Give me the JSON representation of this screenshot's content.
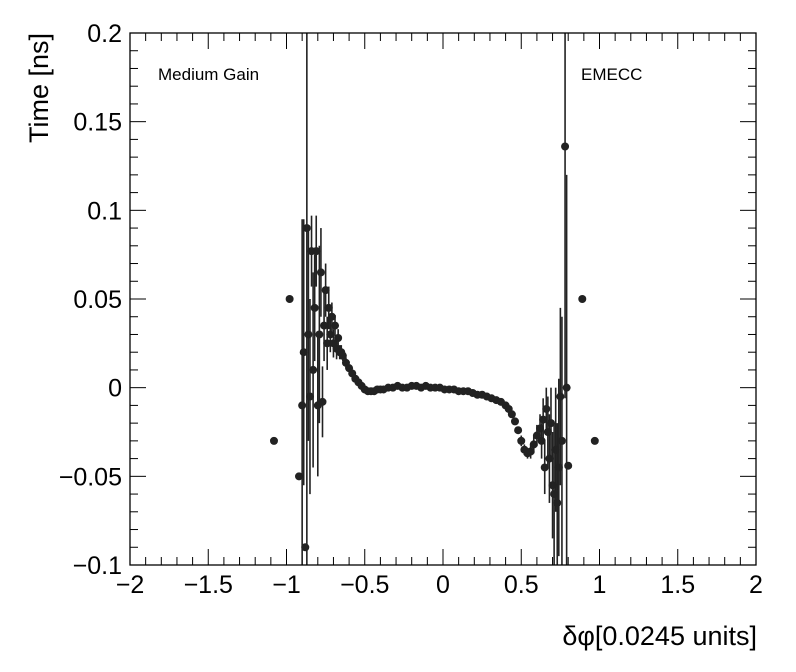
{
  "chart_data": {
    "type": "scatter",
    "title": "",
    "xlabel": "δφ[0.0245 units]",
    "ylabel": "Time [ns]",
    "xlim": [
      -2,
      2
    ],
    "ylim": [
      -0.1,
      0.2
    ],
    "x_ticks": [
      -2,
      -1.5,
      -1,
      -0.5,
      0,
      0.5,
      1,
      1.5,
      2
    ],
    "x_tick_labels": [
      "−2",
      "−1.5",
      "−1",
      "−0.5",
      "0",
      "0.5",
      "1",
      "1.5",
      "2"
    ],
    "y_ticks": [
      -0.1,
      -0.05,
      0,
      0.05,
      0.1,
      0.15,
      0.2
    ],
    "y_tick_labels": [
      "−0.1",
      "−0.05",
      "0",
      "0.05",
      "0.1",
      "0.15",
      "0.2"
    ],
    "grid": false,
    "marker_color": "#222222",
    "annotations": [
      "Medium Gain",
      "EMECC"
    ],
    "series": [
      {
        "points": [
          {
            "x": -1.08,
            "y": -0.03,
            "err": 0
          },
          {
            "x": -0.98,
            "y": 0.05,
            "err": 0
          },
          {
            "x": -0.92,
            "y": -0.05,
            "err": 0
          },
          {
            "x": -0.88,
            "y": -0.09,
            "err": 0
          },
          {
            "x": -0.9,
            "y": -0.01,
            "err": 0.105
          },
          {
            "x": -0.89,
            "y": 0.02,
            "err": 0.075
          },
          {
            "x": -0.87,
            "y": 0.09,
            "err": 0.2
          },
          {
            "x": -0.86,
            "y": 0.03,
            "err": 0.06
          },
          {
            "x": -0.85,
            "y": -0.005,
            "err": 0.055
          },
          {
            "x": -0.84,
            "y": 0.077,
            "err": 0.02
          },
          {
            "x": -0.83,
            "y": 0.01,
            "err": 0.055
          },
          {
            "x": -0.82,
            "y": 0.045,
            "err": 0.03
          },
          {
            "x": -0.81,
            "y": 0.077,
            "err": 0.02
          },
          {
            "x": -0.8,
            "y": -0.01,
            "err": 0.04
          },
          {
            "x": -0.79,
            "y": 0.03,
            "err": 0.05
          },
          {
            "x": -0.78,
            "y": 0.065,
            "err": 0.025
          },
          {
            "x": -0.77,
            "y": -0.008,
            "err": 0.02
          },
          {
            "x": -0.76,
            "y": 0.035,
            "err": 0.02
          },
          {
            "x": -0.75,
            "y": 0.055,
            "err": 0.015
          },
          {
            "x": -0.74,
            "y": 0.025,
            "err": 0.015
          },
          {
            "x": -0.73,
            "y": 0.045,
            "err": 0.012
          },
          {
            "x": -0.72,
            "y": 0.03,
            "err": 0.01
          },
          {
            "x": -0.71,
            "y": 0.04,
            "err": 0.008
          },
          {
            "x": -0.7,
            "y": 0.025,
            "err": 0.008
          },
          {
            "x": -0.69,
            "y": 0.035,
            "err": 0.006
          },
          {
            "x": -0.68,
            "y": 0.022,
            "err": 0.006
          },
          {
            "x": -0.67,
            "y": 0.028,
            "err": 0.005
          },
          {
            "x": -0.66,
            "y": 0.02,
            "err": 0.004
          },
          {
            "x": -0.65,
            "y": 0.02,
            "err": 0.004
          },
          {
            "x": -0.64,
            "y": 0.018,
            "err": 0.003
          },
          {
            "x": -0.62,
            "y": 0.014,
            "err": 0.003
          },
          {
            "x": -0.6,
            "y": 0.011,
            "err": 0.002
          },
          {
            "x": -0.58,
            "y": 0.008,
            "err": 0.002
          },
          {
            "x": -0.56,
            "y": 0.005,
            "err": 0.002
          },
          {
            "x": -0.54,
            "y": 0.003,
            "err": 0.001
          },
          {
            "x": -0.52,
            "y": 0.001,
            "err": 0.001
          },
          {
            "x": -0.5,
            "y": -0.001,
            "err": 0.001
          },
          {
            "x": -0.48,
            "y": -0.002,
            "err": 0.001
          },
          {
            "x": -0.46,
            "y": -0.002,
            "err": 0.001
          },
          {
            "x": -0.44,
            "y": -0.002,
            "err": 0.001
          },
          {
            "x": -0.42,
            "y": -0.001,
            "err": 0.001
          },
          {
            "x": -0.4,
            "y": -0.001,
            "err": 0.001
          },
          {
            "x": -0.38,
            "y": -0.001,
            "err": 0.001
          },
          {
            "x": -0.35,
            "y": 0.0,
            "err": 0.001
          },
          {
            "x": -0.32,
            "y": 0.0,
            "err": 0.001
          },
          {
            "x": -0.29,
            "y": 0.001,
            "err": 0.001
          },
          {
            "x": -0.26,
            "y": 0.0,
            "err": 0.001
          },
          {
            "x": -0.23,
            "y": 0.0,
            "err": 0.001
          },
          {
            "x": -0.2,
            "y": 0.001,
            "err": 0.001
          },
          {
            "x": -0.17,
            "y": 0.001,
            "err": 0.001
          },
          {
            "x": -0.14,
            "y": 0.0,
            "err": 0.001
          },
          {
            "x": -0.11,
            "y": 0.001,
            "err": 0.001
          },
          {
            "x": -0.08,
            "y": 0.0,
            "err": 0.001
          },
          {
            "x": -0.05,
            "y": 0.0,
            "err": 0.001
          },
          {
            "x": -0.02,
            "y": 0.0,
            "err": 0.001
          },
          {
            "x": 0.01,
            "y": -0.001,
            "err": 0.001
          },
          {
            "x": 0.04,
            "y": -0.001,
            "err": 0.001
          },
          {
            "x": 0.07,
            "y": -0.001,
            "err": 0.001
          },
          {
            "x": 0.1,
            "y": -0.002,
            "err": 0.001
          },
          {
            "x": 0.13,
            "y": -0.002,
            "err": 0.001
          },
          {
            "x": 0.16,
            "y": -0.002,
            "err": 0.001
          },
          {
            "x": 0.19,
            "y": -0.003,
            "err": 0.001
          },
          {
            "x": 0.22,
            "y": -0.004,
            "err": 0.001
          },
          {
            "x": 0.25,
            "y": -0.004,
            "err": 0.001
          },
          {
            "x": 0.28,
            "y": -0.005,
            "err": 0.001
          },
          {
            "x": 0.31,
            "y": -0.006,
            "err": 0.001
          },
          {
            "x": 0.34,
            "y": -0.007,
            "err": 0.001
          },
          {
            "x": 0.37,
            "y": -0.008,
            "err": 0.001
          },
          {
            "x": 0.4,
            "y": -0.01,
            "err": 0.001
          },
          {
            "x": 0.42,
            "y": -0.012,
            "err": 0.001
          },
          {
            "x": 0.44,
            "y": -0.015,
            "err": 0.002
          },
          {
            "x": 0.46,
            "y": -0.019,
            "err": 0.002
          },
          {
            "x": 0.48,
            "y": -0.024,
            "err": 0.002
          },
          {
            "x": 0.5,
            "y": -0.03,
            "err": 0.003
          },
          {
            "x": 0.52,
            "y": -0.035,
            "err": 0.003
          },
          {
            "x": 0.54,
            "y": -0.037,
            "err": 0.003
          },
          {
            "x": 0.56,
            "y": -0.036,
            "err": 0.004
          },
          {
            "x": 0.58,
            "y": -0.032,
            "err": 0.005
          },
          {
            "x": 0.6,
            "y": -0.027,
            "err": 0.006
          },
          {
            "x": 0.62,
            "y": -0.023,
            "err": 0.008
          },
          {
            "x": 0.63,
            "y": -0.03,
            "err": 0.01
          },
          {
            "x": 0.64,
            "y": -0.018,
            "err": 0.012
          },
          {
            "x": 0.65,
            "y": -0.045,
            "err": 0.015
          },
          {
            "x": 0.66,
            "y": -0.012,
            "err": 0.012
          },
          {
            "x": 0.67,
            "y": -0.025,
            "err": 0.02
          },
          {
            "x": 0.68,
            "y": -0.04,
            "err": 0.025
          },
          {
            "x": 0.69,
            "y": -0.02,
            "err": 0.02
          },
          {
            "x": 0.7,
            "y": -0.055,
            "err": 0.03
          },
          {
            "x": 0.71,
            "y": -0.06,
            "err": 0.04
          },
          {
            "x": 0.72,
            "y": -0.035,
            "err": 0.035
          },
          {
            "x": 0.73,
            "y": -0.065,
            "err": 0.045
          },
          {
            "x": 0.74,
            "y": -0.045,
            "err": 0.05
          },
          {
            "x": 0.75,
            "y": -0.005,
            "err": 0.05
          },
          {
            "x": 0.76,
            "y": -0.03,
            "err": 0.07
          },
          {
            "x": 0.78,
            "y": 0.136,
            "err": 0.142
          },
          {
            "x": 0.79,
            "y": 0.0,
            "err": 0.12
          },
          {
            "x": 0.8,
            "y": -0.044,
            "err": 0.0
          },
          {
            "x": 0.89,
            "y": 0.05,
            "err": 0
          },
          {
            "x": 0.97,
            "y": -0.03,
            "err": 0
          }
        ]
      }
    ]
  }
}
